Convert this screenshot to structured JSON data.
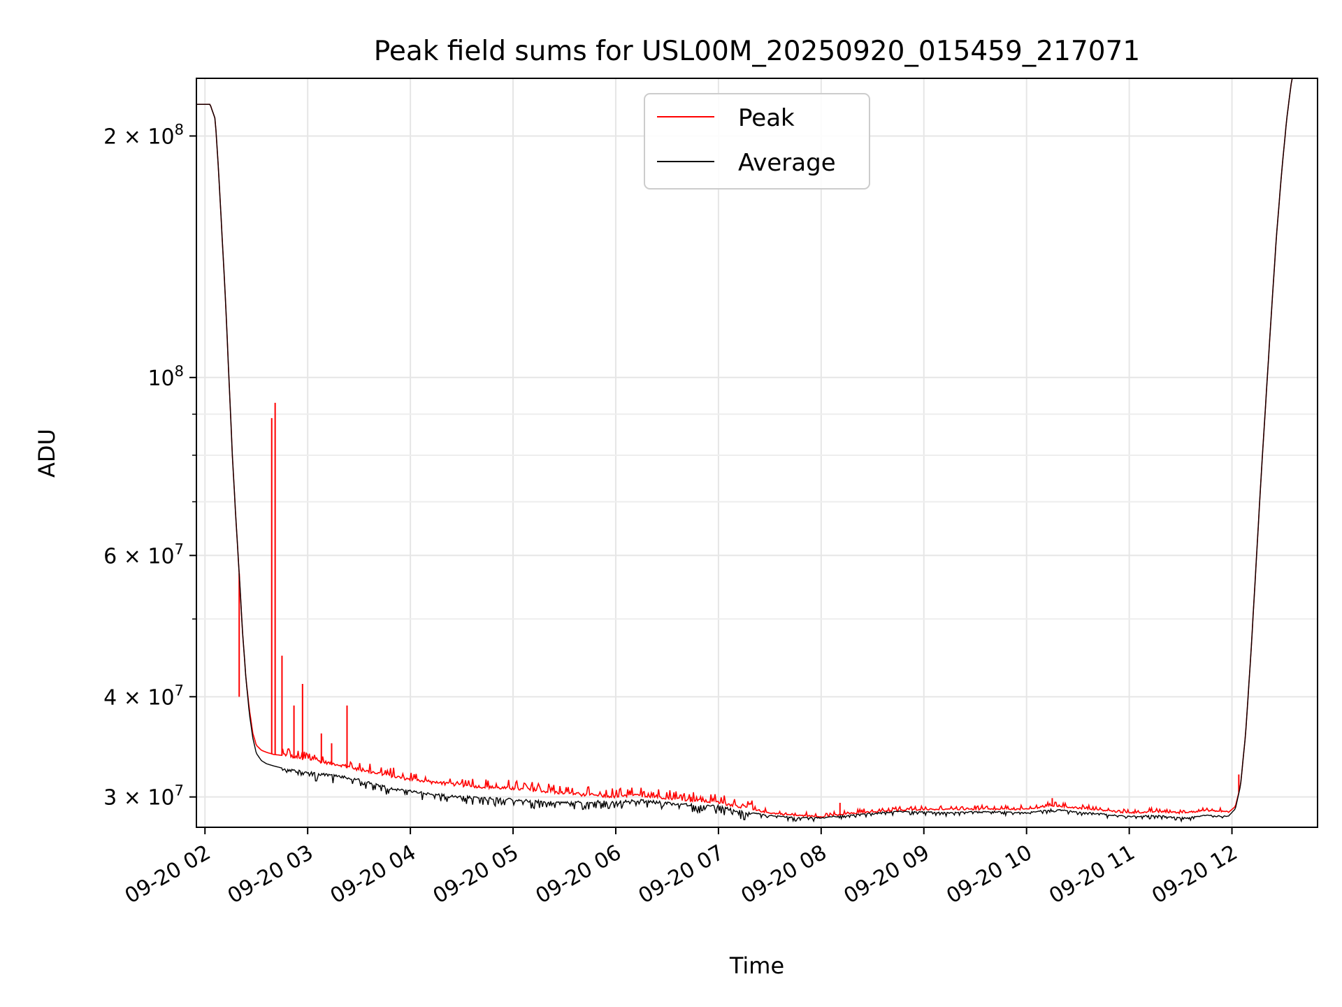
{
  "chart_data": {
    "type": "line",
    "title": "Peak field sums for USL00M_20250920_015459_217071",
    "xlabel": "Time",
    "ylabel": "ADU",
    "y_scale": "log",
    "xlim": [
      "09-20 01:55",
      "09-20 12:50"
    ],
    "ylim": [
      27500000,
      236000000
    ],
    "grid": true,
    "legend_position": "upper-center",
    "x_ticks": [
      "09-20 02",
      "09-20 03",
      "09-20 04",
      "09-20 05",
      "09-20 06",
      "09-20 07",
      "09-20 08",
      "09-20 09",
      "09-20 10",
      "09-20 11",
      "09-20 12"
    ],
    "y_ticks": [
      {
        "value": 30000000,
        "mantissa": "3",
        "exponent": "7"
      },
      {
        "value": 40000000,
        "mantissa": "4",
        "exponent": "7"
      },
      {
        "value": 60000000,
        "mantissa": "6",
        "exponent": "7"
      },
      {
        "value": 100000000,
        "mantissa": "",
        "exponent": "8"
      },
      {
        "value": 200000000,
        "mantissa": "2",
        "exponent": "8"
      }
    ],
    "y_minor_ticks": [
      50000000,
      70000000,
      80000000,
      90000000
    ],
    "series": [
      {
        "name": "Average",
        "color": "#000000",
        "x": [
          "09-20 01:55",
          "09-20 02:03",
          "09-20 02:06",
          "09-20 02:08",
          "09-20 02:10",
          "09-20 02:12",
          "09-20 02:14",
          "09-20 02:16",
          "09-20 02:18",
          "09-20 02:20",
          "09-20 02:22",
          "09-20 02:24",
          "09-20 02:26",
          "09-20 02:28",
          "09-20 02:30",
          "09-20 02:33",
          "09-20 02:36",
          "09-20 02:40",
          "09-20 02:45",
          "09-20 02:50",
          "09-20 02:55",
          "09-20 03:00",
          "09-20 03:10",
          "09-20 03:20",
          "09-20 03:30",
          "09-20 03:40",
          "09-20 03:50",
          "09-20 04:00",
          "09-20 04:15",
          "09-20 04:30",
          "09-20 04:45",
          "09-20 05:00",
          "09-20 05:15",
          "09-20 05:30",
          "09-20 05:45",
          "09-20 06:00",
          "09-20 06:15",
          "09-20 06:30",
          "09-20 06:45",
          "09-20 07:00",
          "09-20 07:15",
          "09-20 07:30",
          "09-20 07:45",
          "09-20 08:00",
          "09-20 08:15",
          "09-20 08:30",
          "09-20 08:45",
          "09-20 09:00",
          "09-20 09:15",
          "09-20 09:30",
          "09-20 09:45",
          "09-20 10:00",
          "09-20 10:15",
          "09-20 10:30",
          "09-20 10:45",
          "09-20 11:00",
          "09-20 11:15",
          "09-20 11:30",
          "09-20 11:45",
          "09-20 11:58",
          "09-20 12:02",
          "09-20 12:05",
          "09-20 12:08",
          "09-20 12:11",
          "09-20 12:14",
          "09-20 12:17",
          "09-20 12:20",
          "09-20 12:23",
          "09-20 12:26",
          "09-20 12:29",
          "09-20 12:32",
          "09-20 12:35",
          "09-20 12:38",
          "09-20 12:50"
        ],
        "values": [
          219000000,
          219000000,
          210000000,
          180000000,
          150000000,
          125000000,
          100000000,
          80000000,
          67000000,
          57000000,
          48000000,
          42000000,
          38000000,
          35500000,
          34000000,
          33300000,
          33000000,
          32800000,
          32600000,
          32500000,
          32400000,
          32300000,
          32100000,
          31900000,
          31600000,
          31200000,
          30800000,
          30600000,
          30300000,
          30100000,
          30000000,
          29900000,
          29700000,
          29600000,
          29700000,
          29700000,
          29800000,
          29600000,
          29400000,
          29300000,
          28800000,
          28500000,
          28300000,
          28300000,
          28500000,
          28700000,
          28800000,
          28800000,
          28700000,
          28800000,
          28800000,
          28700000,
          29000000,
          28800000,
          28600000,
          28400000,
          28500000,
          28300000,
          28500000,
          28400000,
          29000000,
          31000000,
          36000000,
          45000000,
          58000000,
          75000000,
          95000000,
          120000000,
          150000000,
          180000000,
          210000000,
          236000000,
          236000000,
          236000000
        ]
      },
      {
        "name": "Peak",
        "color": "#ff0000",
        "x": [
          "09-20 01:55",
          "09-20 02:03",
          "09-20 02:06",
          "09-20 02:08",
          "09-20 02:10",
          "09-20 02:12",
          "09-20 02:14",
          "09-20 02:16",
          "09-20 02:18",
          "09-20 02:20",
          "09-20 02:22",
          "09-20 02:24",
          "09-20 02:26",
          "09-20 02:28",
          "09-20 02:30",
          "09-20 02:33",
          "09-20 02:36",
          "09-20 02:40",
          "09-20 02:45",
          "09-20 02:50",
          "09-20 02:55",
          "09-20 03:00",
          "09-20 03:10",
          "09-20 03:20",
          "09-20 03:30",
          "09-20 03:40",
          "09-20 03:50",
          "09-20 04:00",
          "09-20 04:15",
          "09-20 04:30",
          "09-20 04:45",
          "09-20 05:00",
          "09-20 05:15",
          "09-20 05:30",
          "09-20 05:45",
          "09-20 06:00",
          "09-20 06:15",
          "09-20 06:30",
          "09-20 06:45",
          "09-20 07:00",
          "09-20 07:15",
          "09-20 07:30",
          "09-20 07:45",
          "09-20 08:00",
          "09-20 08:15",
          "09-20 08:30",
          "09-20 08:45",
          "09-20 09:00",
          "09-20 09:15",
          "09-20 09:30",
          "09-20 09:45",
          "09-20 10:00",
          "09-20 10:15",
          "09-20 10:30",
          "09-20 10:45",
          "09-20 11:00",
          "09-20 11:15",
          "09-20 11:30",
          "09-20 11:45",
          "09-20 11:58",
          "09-20 12:02",
          "09-20 12:05",
          "09-20 12:08",
          "09-20 12:11",
          "09-20 12:14",
          "09-20 12:17",
          "09-20 12:20",
          "09-20 12:23",
          "09-20 12:26",
          "09-20 12:29",
          "09-20 12:32",
          "09-20 12:35",
          "09-20 12:38",
          "09-20 12:50"
        ],
        "values": [
          219000000,
          219000000,
          210000000,
          180000000,
          150000000,
          125000000,
          100000000,
          80000000,
          67000000,
          57000000,
          48000000,
          42000000,
          38500000,
          36000000,
          34800000,
          34300000,
          34100000,
          33900000,
          33800000,
          33600000,
          33400000,
          33300000,
          33000000,
          32700000,
          32300000,
          32000000,
          31700000,
          31400000,
          31100000,
          30900000,
          30700000,
          30600000,
          30400000,
          30200000,
          30000000,
          29900000,
          30000000,
          29800000,
          29600000,
          29400000,
          29000000,
          28600000,
          28400000,
          28300000,
          28500000,
          28700000,
          28800000,
          28900000,
          28900000,
          28900000,
          28900000,
          28900000,
          29200000,
          29000000,
          28800000,
          28600000,
          28700000,
          28600000,
          28800000,
          28700000,
          29200000,
          31000000,
          36000000,
          45000000,
          58000000,
          75000000,
          95000000,
          120000000,
          150000000,
          180000000,
          210000000,
          236000000,
          236000000,
          236000000
        ],
        "spikes": [
          {
            "x": "09-20 02:39",
            "y": 89000000
          },
          {
            "x": "09-20 02:41",
            "y": 93000000
          },
          {
            "x": "09-20 02:45",
            "y": 45000000
          },
          {
            "x": "09-20 02:52",
            "y": 39000000
          },
          {
            "x": "09-20 02:57",
            "y": 41500000
          },
          {
            "x": "09-20 03:08",
            "y": 36000000
          },
          {
            "x": "09-20 03:14",
            "y": 35000000
          },
          {
            "x": "09-20 03:23",
            "y": 39000000
          },
          {
            "x": "09-20 02:20",
            "y": 40000000
          },
          {
            "x": "09-20 06:44",
            "y": 30000000
          },
          {
            "x": "09-20 08:11",
            "y": 29500000
          },
          {
            "x": "09-20 10:15",
            "y": 29900000
          },
          {
            "x": "09-20 12:04",
            "y": 32000000
          }
        ]
      }
    ]
  }
}
